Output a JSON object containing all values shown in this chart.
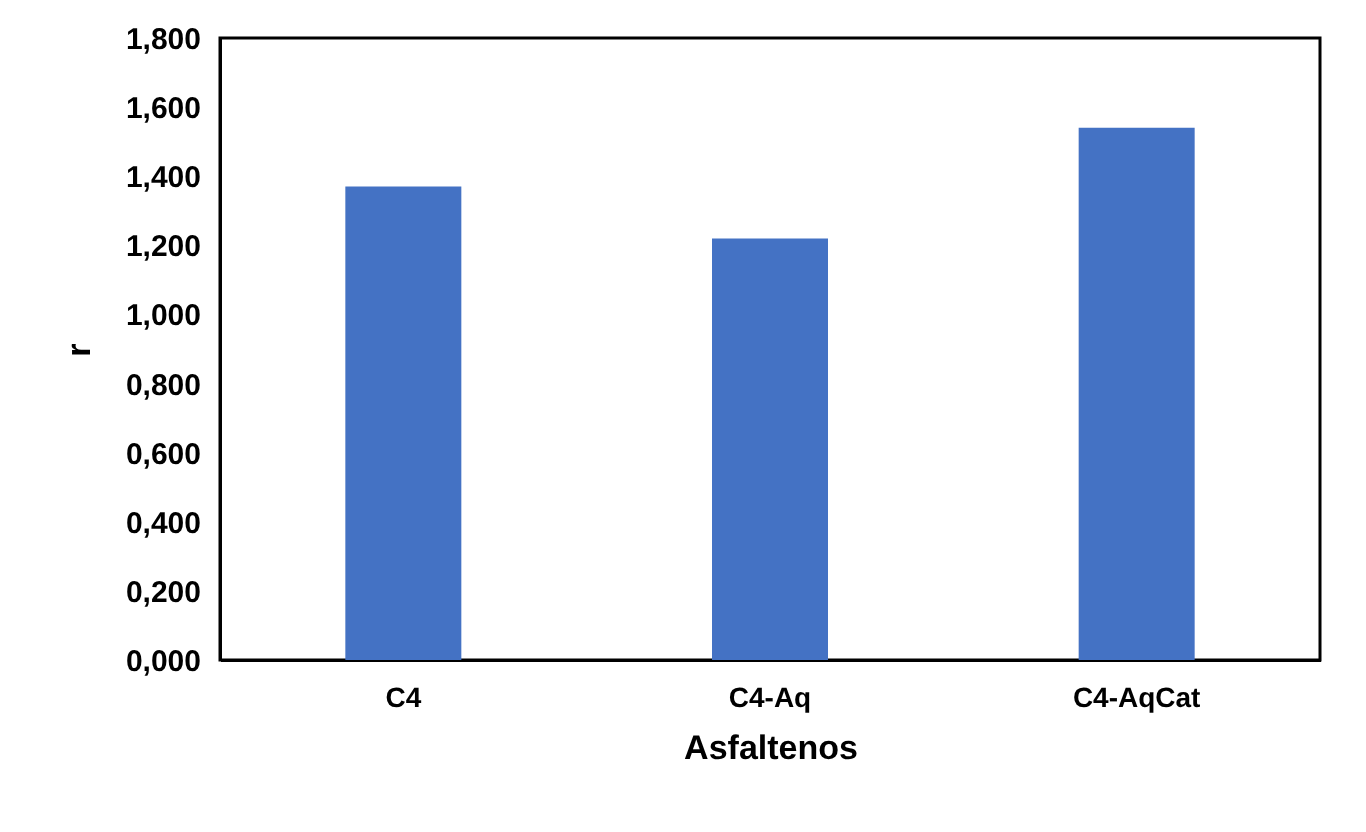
{
  "chart_data": {
    "type": "bar",
    "xlabel": "Asfaltenos",
    "ylabel": "r",
    "categories": [
      "C4",
      "C4-Aq",
      "C4-AqCat"
    ],
    "values": [
      1.37,
      1.22,
      1.54
    ],
    "color": "#4472c4",
    "ylim": [
      0,
      1.8
    ],
    "yticks": [
      {
        "value": 0,
        "label": "0,000"
      },
      {
        "value": 0.2,
        "label": "0,200"
      },
      {
        "value": 0.4,
        "label": "0,400"
      },
      {
        "value": 0.6,
        "label": "0,600"
      },
      {
        "value": 0.8,
        "label": "0,800"
      },
      {
        "value": 1.0,
        "label": "1,000"
      },
      {
        "value": 1.2,
        "label": "1,200"
      },
      {
        "value": 1.4,
        "label": "1,400"
      },
      {
        "value": 1.6,
        "label": "1,600"
      },
      {
        "value": 1.8,
        "label": "1,800"
      }
    ],
    "grid": false
  }
}
